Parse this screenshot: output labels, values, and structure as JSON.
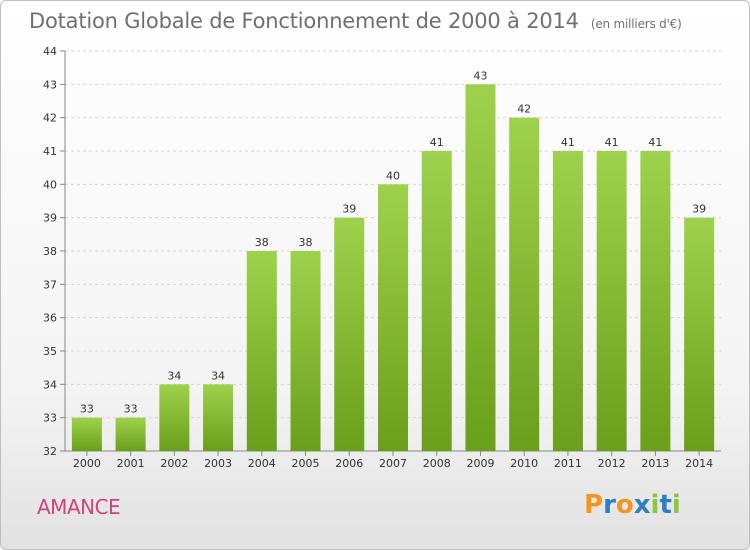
{
  "header": {
    "title": "Dotation Globale de Fonctionnement de 2000 à 2014",
    "subtitle": "(en milliers d'€)"
  },
  "footer": {
    "city": "AMANCE",
    "logo": "Proxiti"
  },
  "colors": {
    "bar_light": "#9fd24c",
    "bar_dark": "#6a9f1b",
    "city": "#d0437a",
    "logo_letters": [
      "#f7941d",
      "#2d7fc1",
      "#f7941d",
      "#2d7fc1",
      "#8cc63f",
      "#2d7fc1",
      "#8cc63f"
    ]
  },
  "chart_data": {
    "type": "bar",
    "title": "Dotation Globale de Fonctionnement de 2000 à 2014",
    "subtitle": "(en milliers d'€)",
    "categories": [
      "2000",
      "2001",
      "2002",
      "2003",
      "2004",
      "2005",
      "2006",
      "2007",
      "2008",
      "2009",
      "2010",
      "2011",
      "2012",
      "2013",
      "2014"
    ],
    "values": [
      33,
      33,
      34,
      34,
      38,
      38,
      39,
      40,
      41,
      43,
      42,
      41,
      41,
      41,
      39
    ],
    "ylim": [
      32,
      44
    ],
    "yticks": [
      32,
      33,
      34,
      35,
      36,
      37,
      38,
      39,
      40,
      41,
      42,
      43,
      44
    ],
    "grid": true,
    "xlabel": "",
    "ylabel": ""
  }
}
